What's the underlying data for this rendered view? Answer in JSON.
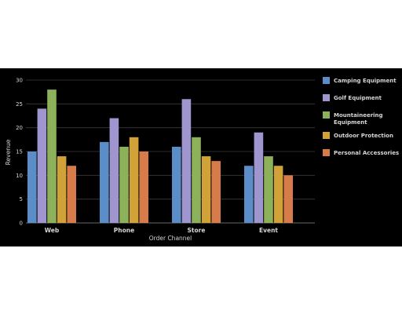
{
  "chart_data": {
    "type": "bar",
    "title": "",
    "xlabel": "Order Channel",
    "ylabel": "Revenue",
    "ylim": [
      0,
      30
    ],
    "yticks": [
      0,
      5,
      10,
      15,
      20,
      25,
      30
    ],
    "grid": true,
    "legend_position": "right",
    "categories": [
      "Web",
      "Phone",
      "Store",
      "Event"
    ],
    "series": [
      {
        "name": "Camping Equipment",
        "color": "#5b8ec9",
        "values": [
          15,
          17,
          16,
          12
        ]
      },
      {
        "name": "Golf Equipment",
        "color": "#9f96cf",
        "values": [
          24,
          22,
          26,
          19
        ]
      },
      {
        "name": "Mountaineering Equipment",
        "legend_lines": [
          "Mountaineering",
          "Equipment"
        ],
        "color": "#8db05a",
        "values": [
          28,
          16,
          18,
          14
        ]
      },
      {
        "name": "Outdoor Protection",
        "color": "#d0a237",
        "values": [
          14,
          18,
          14,
          12
        ]
      },
      {
        "name": "Personal Accessories",
        "color": "#d87b4a",
        "values": [
          12,
          15,
          13,
          10
        ]
      }
    ]
  }
}
